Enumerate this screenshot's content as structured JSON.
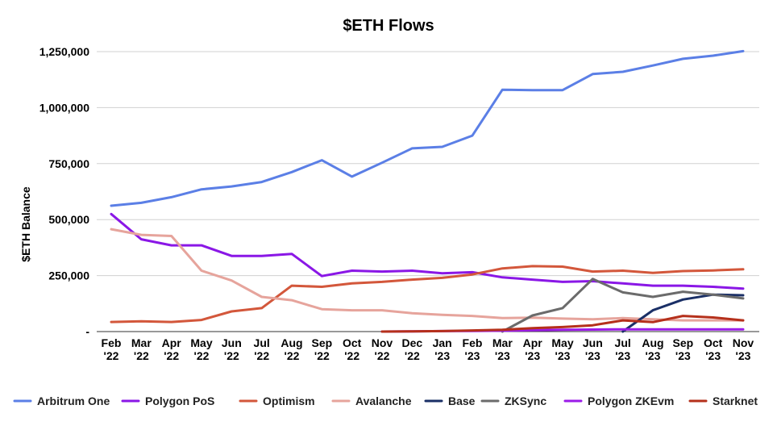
{
  "chart_data": {
    "type": "line",
    "title": "$ETH Flows",
    "xlabel": "",
    "ylabel": "$ETH Balance",
    "ylim": [
      0,
      1250000
    ],
    "y_ticks": [
      0,
      250000,
      500000,
      750000,
      1000000,
      1250000
    ],
    "y_tick_labels": [
      "-",
      "250,000",
      "500,000",
      "750,000",
      "1,000,000",
      "1,250,000"
    ],
    "grid": true,
    "legend_position": "bottom",
    "categories": [
      [
        "Feb",
        "'22"
      ],
      [
        "Mar",
        "'22"
      ],
      [
        "Apr",
        "'22"
      ],
      [
        "May",
        "'22"
      ],
      [
        "Jun",
        "'22"
      ],
      [
        "Jul",
        "'22"
      ],
      [
        "Aug",
        "'22"
      ],
      [
        "Sep",
        "'22"
      ],
      [
        "Oct",
        "'22"
      ],
      [
        "Nov",
        "'22"
      ],
      [
        "Dec",
        "'22"
      ],
      [
        "Jan",
        "'23"
      ],
      [
        "Feb",
        "'23"
      ],
      [
        "Mar",
        "'23"
      ],
      [
        "Apr",
        "'23"
      ],
      [
        "May",
        "'23"
      ],
      [
        "Jun",
        "'23"
      ],
      [
        "Jul",
        "'23"
      ],
      [
        "Aug",
        "'23"
      ],
      [
        "Sep",
        "'23"
      ],
      [
        "Oct",
        "'23"
      ],
      [
        "Nov",
        "'23"
      ]
    ],
    "series": [
      {
        "name": "Arbitrum One",
        "color": "#5b7fe6",
        "values": [
          562000,
          575000,
          600000,
          635000,
          648000,
          668000,
          712000,
          765000,
          692000,
          754000,
          818000,
          825000,
          875000,
          1080000,
          1078000,
          1078000,
          1150000,
          1160000,
          1188000,
          1218000,
          1232000,
          1252000
        ]
      },
      {
        "name": "Polygon PoS",
        "color": "#8a17e6",
        "values": [
          525000,
          412000,
          385000,
          385000,
          338000,
          338000,
          347000,
          248000,
          272000,
          268000,
          272000,
          260000,
          265000,
          242000,
          232000,
          222000,
          225000,
          215000,
          205000,
          205000,
          200000,
          192000
        ]
      },
      {
        "name": "Optimism",
        "color": "#d3573b",
        "values": [
          43000,
          46000,
          43000,
          52000,
          90000,
          105000,
          205000,
          200000,
          215000,
          222000,
          232000,
          240000,
          255000,
          282000,
          292000,
          290000,
          268000,
          272000,
          262000,
          270000,
          273000,
          278000
        ]
      },
      {
        "name": "Avalanche",
        "color": "#e6a49c",
        "values": [
          457000,
          432000,
          427000,
          272000,
          228000,
          155000,
          140000,
          100000,
          95000,
          95000,
          82000,
          75000,
          70000,
          60000,
          62000,
          58000,
          55000,
          60000,
          55000,
          50000,
          50000,
          50000
        ]
      },
      {
        "name": "Base",
        "color": "#1a2f66",
        "values": [
          null,
          null,
          null,
          null,
          null,
          null,
          null,
          null,
          null,
          null,
          null,
          null,
          null,
          null,
          null,
          null,
          null,
          0,
          95000,
          143000,
          165000,
          162000
        ]
      },
      {
        "name": "ZKSync",
        "color": "#6b6b6b",
        "values": [
          null,
          null,
          null,
          null,
          null,
          null,
          null,
          null,
          null,
          null,
          null,
          null,
          null,
          0,
          72000,
          105000,
          235000,
          175000,
          155000,
          178000,
          165000,
          148000
        ]
      },
      {
        "name": "Polygon ZKEvm",
        "color": "#9b1be8",
        "values": [
          null,
          null,
          null,
          null,
          null,
          null,
          null,
          null,
          null,
          0,
          1000,
          2000,
          3000,
          4000,
          6000,
          8000,
          9000,
          10000,
          10000,
          10000,
          10000,
          10000
        ]
      },
      {
        "name": "Starknet",
        "color": "#b5301b",
        "values": [
          null,
          null,
          null,
          null,
          null,
          null,
          null,
          null,
          null,
          0,
          1000,
          2000,
          5000,
          8000,
          15000,
          20000,
          28000,
          50000,
          42000,
          70000,
          63000,
          50000
        ]
      }
    ]
  }
}
